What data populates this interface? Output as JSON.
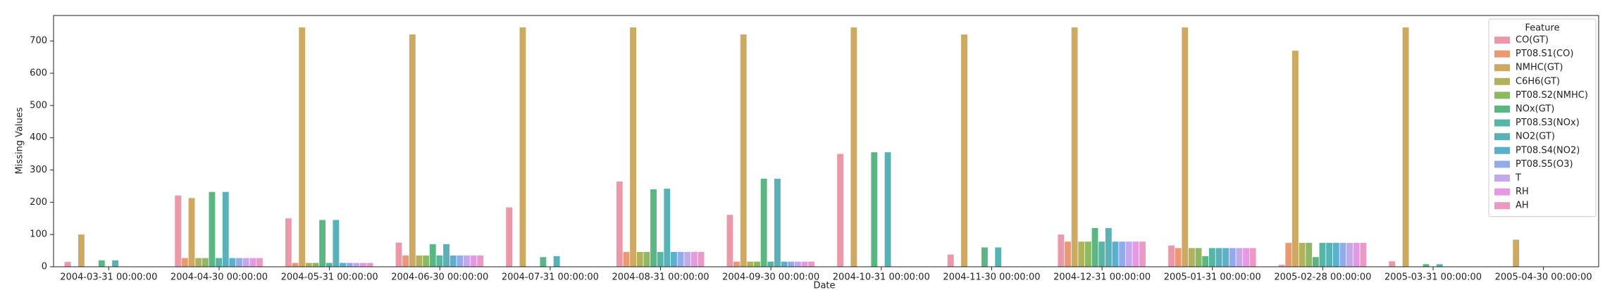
{
  "chart_data": {
    "type": "bar",
    "xlabel": "Date",
    "ylabel": "Missing Values",
    "legend_title": "Feature",
    "legend_loc": "upper right",
    "categories": [
      "2004-03-31 00:00:00",
      "2004-04-30 00:00:00",
      "2004-05-31 00:00:00",
      "2004-06-30 00:00:00",
      "2004-07-31 00:00:00",
      "2004-08-31 00:00:00",
      "2004-09-30 00:00:00",
      "2004-10-31 00:00:00",
      "2004-11-30 00:00:00",
      "2004-12-31 00:00:00",
      "2005-01-31 00:00:00",
      "2005-02-28 00:00:00",
      "2005-03-31 00:00:00",
      "2005-04-30 00:00:00"
    ],
    "ylim": [
      0,
      779
    ],
    "yticks": [
      0,
      100,
      200,
      300,
      400,
      500,
      600,
      700
    ],
    "series": [
      {
        "name": "CO(GT)",
        "color": "#e8879a",
        "values": [
          15,
          221,
          150,
          75,
          184,
          264,
          161,
          350,
          38,
          100,
          66,
          6,
          17,
          0
        ]
      },
      {
        "name": "PT08.S1(CO)",
        "color": "#e8875a",
        "values": [
          0,
          27,
          12,
          35,
          0,
          46,
          16,
          0,
          0,
          78,
          58,
          74,
          0,
          0
        ]
      },
      {
        "name": "NMHC(GT)",
        "color": "#c49a45",
        "values": [
          100,
          213,
          742,
          720,
          742,
          742,
          720,
          742,
          720,
          742,
          742,
          670,
          742,
          84
        ]
      },
      {
        "name": "C6H6(GT)",
        "color": "#a5a33f",
        "values": [
          0,
          27,
          12,
          35,
          0,
          46,
          16,
          0,
          0,
          78,
          58,
          74,
          0,
          0
        ]
      },
      {
        "name": "PT08.S2(NMHC)",
        "color": "#78ad45",
        "values": [
          0,
          27,
          12,
          35,
          0,
          46,
          16,
          0,
          0,
          78,
          58,
          74,
          0,
          0
        ]
      },
      {
        "name": "NOx(GT)",
        "color": "#3daa6d",
        "values": [
          20,
          232,
          145,
          70,
          30,
          240,
          273,
          355,
          60,
          120,
          33,
          30,
          8,
          0
        ]
      },
      {
        "name": "PT08.S3(NOx)",
        "color": "#3aa896",
        "values": [
          0,
          27,
          12,
          35,
          0,
          46,
          16,
          0,
          0,
          78,
          58,
          74,
          0,
          0
        ]
      },
      {
        "name": "NO2(GT)",
        "color": "#3ba5ab",
        "values": [
          20,
          232,
          145,
          70,
          33,
          242,
          273,
          355,
          60,
          120,
          58,
          74,
          8,
          0
        ]
      },
      {
        "name": "PT08.S4(NO2)",
        "color": "#3da2c6",
        "values": [
          0,
          27,
          12,
          35,
          0,
          46,
          16,
          0,
          0,
          78,
          58,
          74,
          0,
          0
        ]
      },
      {
        "name": "PT08.S5(O3)",
        "color": "#7f9ee8",
        "values": [
          0,
          27,
          12,
          35,
          0,
          46,
          16,
          0,
          0,
          78,
          58,
          74,
          0,
          0
        ]
      },
      {
        "name": "T",
        "color": "#b89ae8",
        "values": [
          0,
          27,
          12,
          35,
          0,
          46,
          16,
          0,
          0,
          78,
          58,
          74,
          0,
          0
        ]
      },
      {
        "name": "RH",
        "color": "#e286e0",
        "values": [
          0,
          27,
          12,
          35,
          0,
          46,
          16,
          0,
          0,
          78,
          58,
          74,
          0,
          0
        ]
      },
      {
        "name": "AH",
        "color": "#e887bb",
        "values": [
          0,
          27,
          12,
          35,
          0,
          46,
          16,
          0,
          0,
          78,
          58,
          74,
          0,
          0
        ]
      }
    ]
  }
}
